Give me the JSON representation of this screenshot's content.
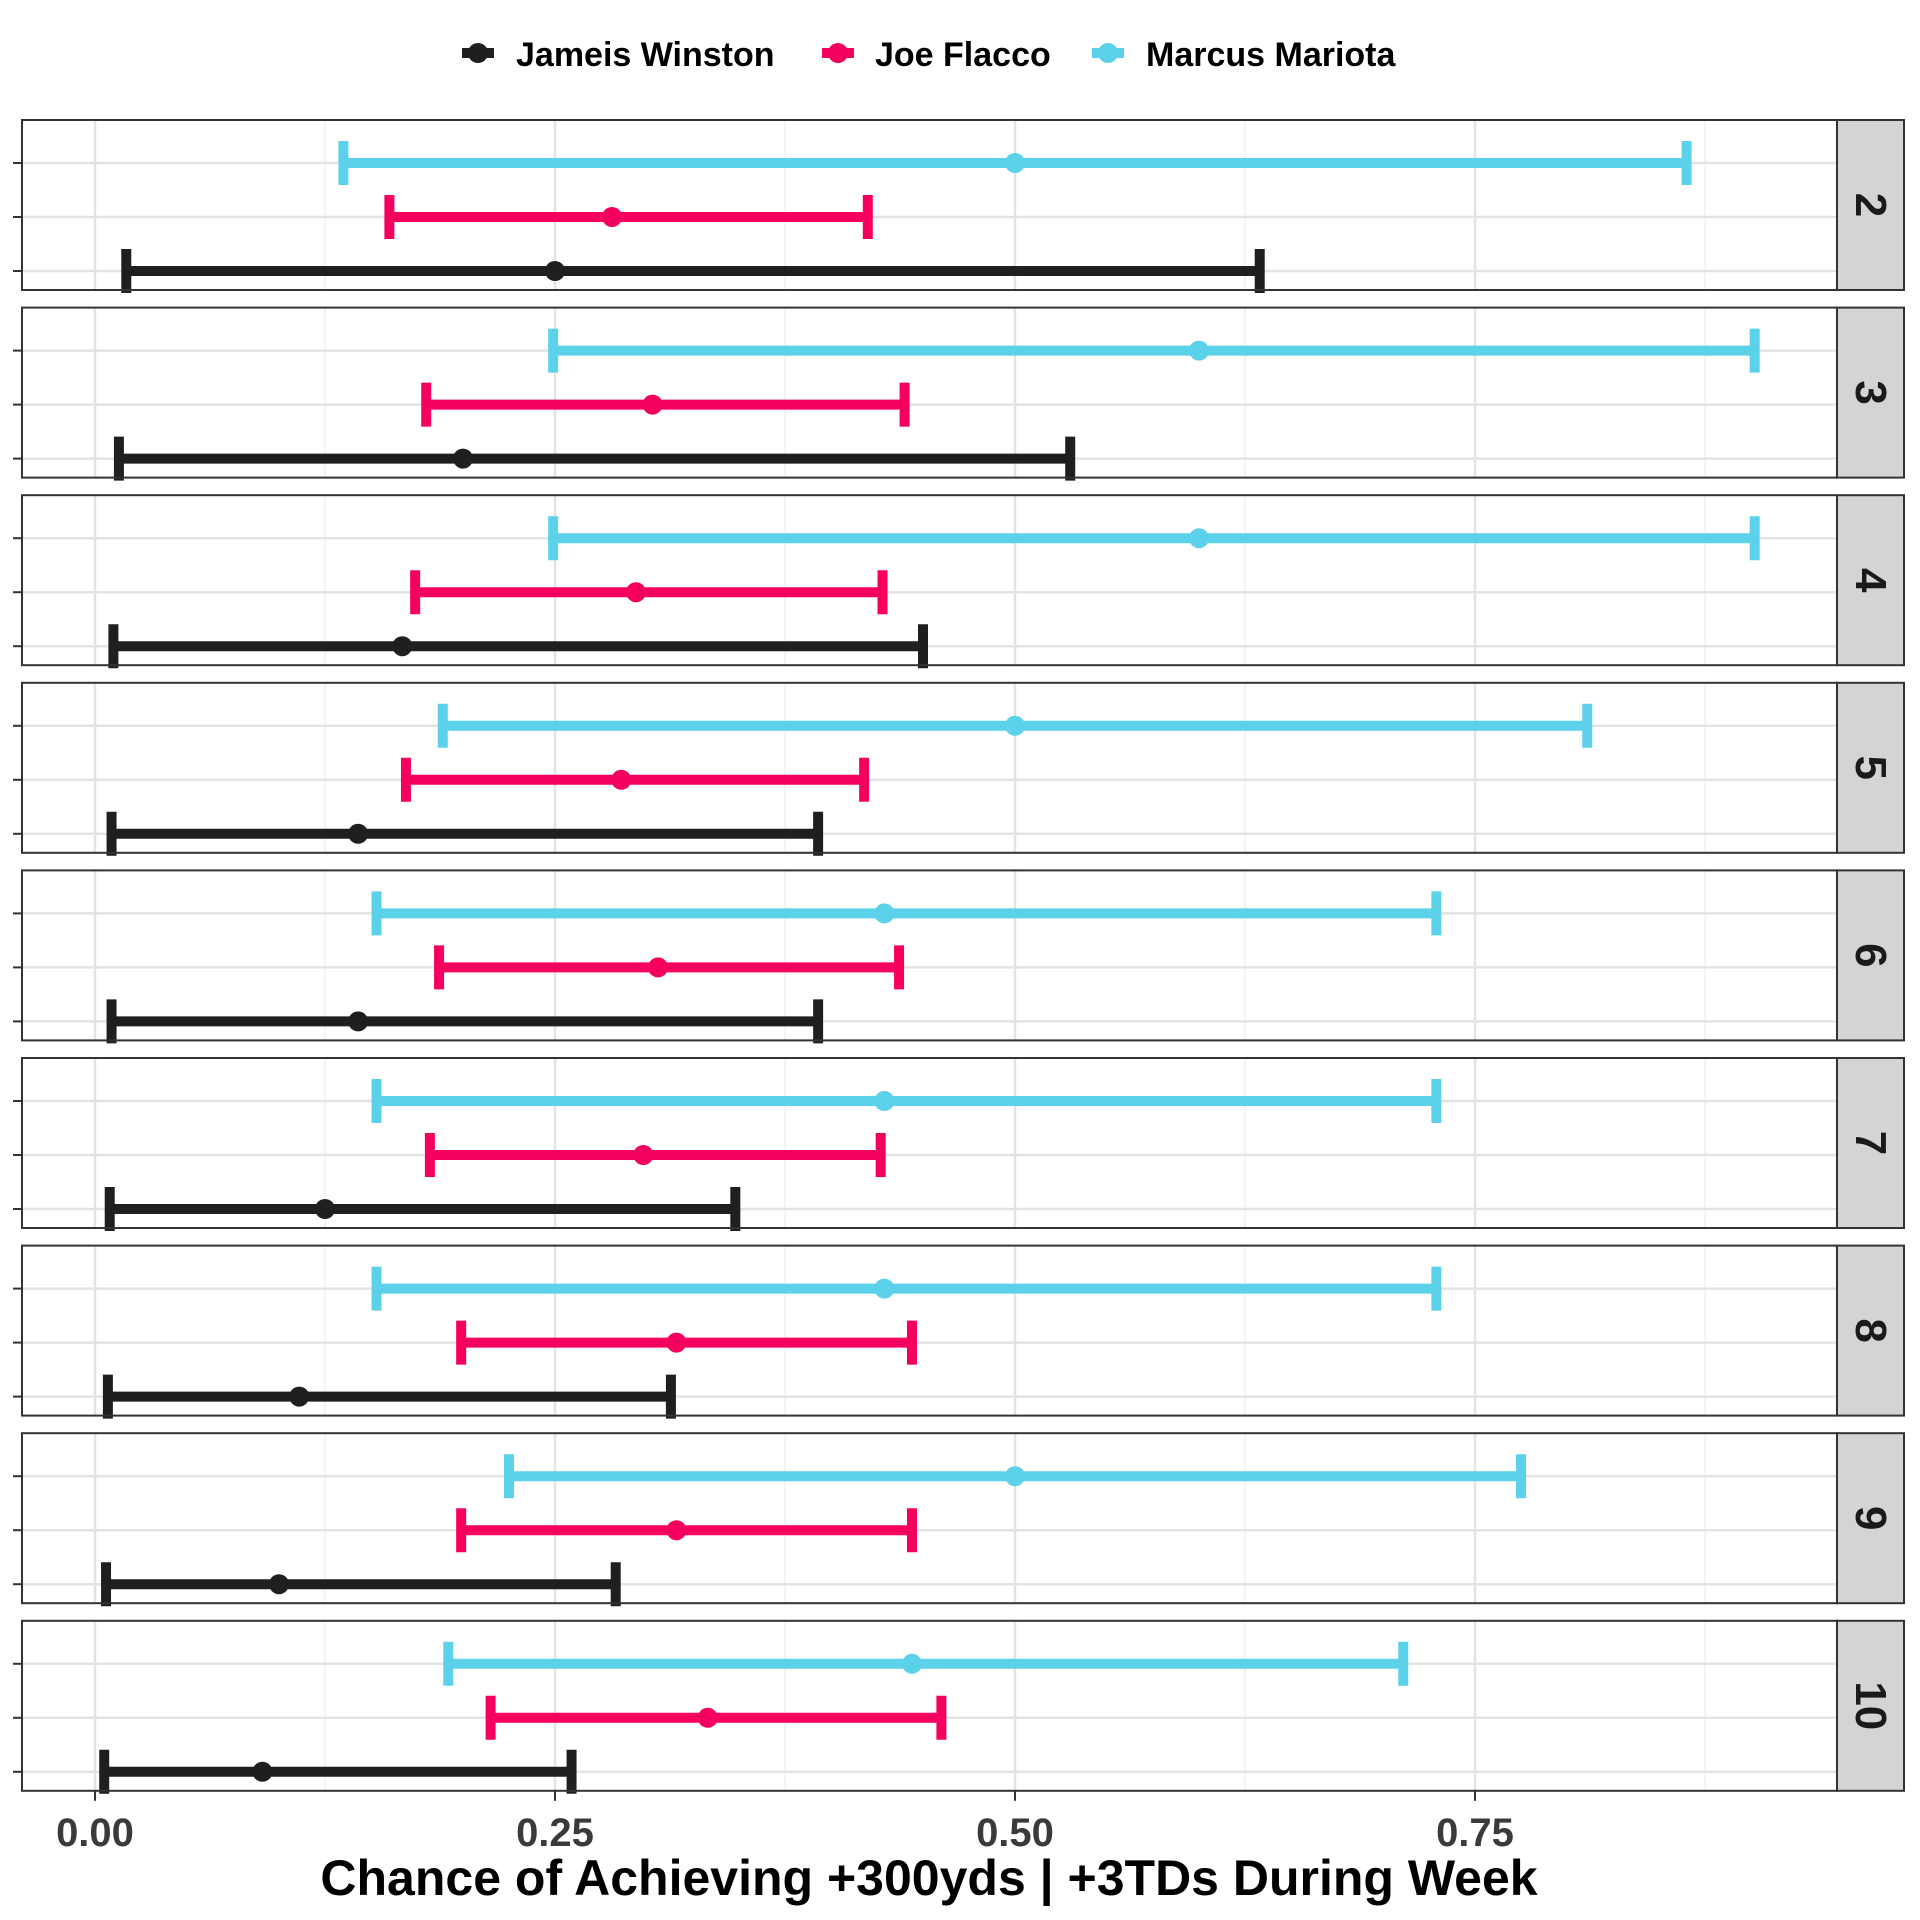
{
  "chart_data": {
    "type": "errorbar",
    "xlabel": "Chance of Achieving +300yds | +3TDs During Week",
    "xlim": [
      -0.04,
      0.95
    ],
    "x_ticks": [
      0.0,
      0.25,
      0.5,
      0.75
    ],
    "x_tick_labels": [
      "0.00",
      "0.25",
      "0.50",
      "0.75"
    ],
    "grid": true,
    "legend_position": "top",
    "facet_variable": "week",
    "facets": [
      "2",
      "3",
      "4",
      "5",
      "6",
      "7",
      "8",
      "9",
      "10"
    ],
    "series": [
      {
        "name": "Jameis Winston",
        "color": "#1f1f1f",
        "points": [
          {
            "week": "2",
            "low": 0.017,
            "estimate": 0.25,
            "high": 0.633
          },
          {
            "week": "3",
            "low": 0.013,
            "estimate": 0.2,
            "high": 0.53
          },
          {
            "week": "4",
            "low": 0.01,
            "estimate": 0.167,
            "high": 0.45
          },
          {
            "week": "5",
            "low": 0.009,
            "estimate": 0.143,
            "high": 0.393
          },
          {
            "week": "6",
            "low": 0.009,
            "estimate": 0.143,
            "high": 0.393
          },
          {
            "week": "7",
            "low": 0.008,
            "estimate": 0.125,
            "high": 0.348
          },
          {
            "week": "8",
            "low": 0.007,
            "estimate": 0.111,
            "high": 0.313
          },
          {
            "week": "9",
            "low": 0.006,
            "estimate": 0.1,
            "high": 0.283
          },
          {
            "week": "10",
            "low": 0.005,
            "estimate": 0.091,
            "high": 0.259
          }
        ]
      },
      {
        "name": "Joe Flacco",
        "color": "#f5005f",
        "points": [
          {
            "week": "2",
            "low": 0.16,
            "estimate": 0.281,
            "high": 0.42
          },
          {
            "week": "3",
            "low": 0.18,
            "estimate": 0.303,
            "high": 0.44
          },
          {
            "week": "4",
            "low": 0.174,
            "estimate": 0.294,
            "high": 0.428
          },
          {
            "week": "5",
            "low": 0.169,
            "estimate": 0.286,
            "high": 0.418
          },
          {
            "week": "6",
            "low": 0.187,
            "estimate": 0.306,
            "high": 0.437
          },
          {
            "week": "7",
            "low": 0.182,
            "estimate": 0.298,
            "high": 0.427
          },
          {
            "week": "8",
            "low": 0.199,
            "estimate": 0.316,
            "high": 0.444
          },
          {
            "week": "9",
            "low": 0.199,
            "estimate": 0.316,
            "high": 0.444
          },
          {
            "week": "10",
            "low": 0.215,
            "estimate": 0.333,
            "high": 0.46
          }
        ]
      },
      {
        "name": "Marcus Mariota",
        "color": "#5bd2ea",
        "points": [
          {
            "week": "2",
            "low": 0.135,
            "estimate": 0.5,
            "high": 0.865
          },
          {
            "week": "3",
            "low": 0.249,
            "estimate": 0.6,
            "high": 0.902
          },
          {
            "week": "4",
            "low": 0.249,
            "estimate": 0.6,
            "high": 0.902
          },
          {
            "week": "5",
            "low": 0.189,
            "estimate": 0.5,
            "high": 0.811
          },
          {
            "week": "6",
            "low": 0.153,
            "estimate": 0.429,
            "high": 0.729
          },
          {
            "week": "7",
            "low": 0.153,
            "estimate": 0.429,
            "high": 0.729
          },
          {
            "week": "8",
            "low": 0.153,
            "estimate": 0.429,
            "high": 0.729
          },
          {
            "week": "9",
            "low": 0.225,
            "estimate": 0.5,
            "high": 0.775
          },
          {
            "week": "10",
            "low": 0.192,
            "estimate": 0.444,
            "high": 0.711
          }
        ]
      }
    ]
  }
}
